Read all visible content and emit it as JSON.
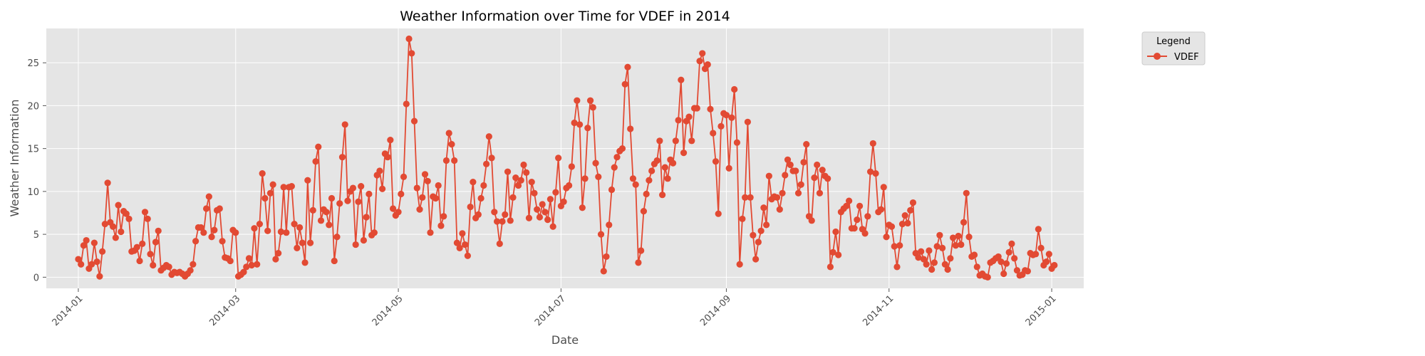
{
  "chart_data": {
    "type": "line",
    "title": "Weather Information over Time for VDEF in 2014",
    "xlabel": "Date",
    "ylabel": "Weather Information",
    "xlim_days": [
      -12,
      377
    ],
    "ylim": [
      -1.3,
      29.0
    ],
    "x_ticks": [
      {
        "label": "2014-01",
        "day": 0
      },
      {
        "label": "2014-03",
        "day": 59
      },
      {
        "label": "2014-05",
        "day": 120
      },
      {
        "label": "2014-07",
        "day": 181
      },
      {
        "label": "2014-09",
        "day": 243
      },
      {
        "label": "2014-11",
        "day": 304
      },
      {
        "label": "2015-01",
        "day": 365
      }
    ],
    "y_ticks": [
      0,
      5,
      10,
      15,
      20,
      25
    ],
    "grid": true,
    "legend": {
      "title": "Legend",
      "position": "outside-top-right",
      "entries": [
        "VDEF"
      ]
    },
    "colors": {
      "series": "#E24A33",
      "plot_bg": "#E5E5E5",
      "grid": "#ffffff"
    },
    "series": [
      {
        "name": "VDEF",
        "start_date": "2014-01-01",
        "step_days": 1,
        "values": [
          2.1,
          1.5,
          3.7,
          4.3,
          1.0,
          1.5,
          4.0,
          1.8,
          0.1,
          3.0,
          6.2,
          11.0,
          6.4,
          5.9,
          4.6,
          8.4,
          5.3,
          7.7,
          7.4,
          6.8,
          3.0,
          3.1,
          3.5,
          1.9,
          3.9,
          7.6,
          6.8,
          2.7,
          1.4,
          4.1,
          5.4,
          0.8,
          1.1,
          1.4,
          1.2,
          0.3,
          0.6,
          0.5,
          0.6,
          0.4,
          0.1,
          0.4,
          0.8,
          1.5,
          4.2,
          5.8,
          5.8,
          5.2,
          8.0,
          9.4,
          4.7,
          5.5,
          7.8,
          8.0,
          4.2,
          2.3,
          2.2,
          1.9,
          5.5,
          5.2,
          0.1,
          0.3,
          0.6,
          1.2,
          2.2,
          1.4,
          5.7,
          1.5,
          6.2,
          12.1,
          9.2,
          5.4,
          9.8,
          10.8,
          2.1,
          2.8,
          5.3,
          10.5,
          5.2,
          10.5,
          10.6,
          6.2,
          3.4,
          5.8,
          4.0,
          1.7,
          11.3,
          4.0,
          7.8,
          13.5,
          15.2,
          6.6,
          7.9,
          7.6,
          6.1,
          9.2,
          1.9,
          4.7,
          8.6,
          14.0,
          17.8,
          8.9,
          10.0,
          10.4,
          3.8,
          8.8,
          10.6,
          4.3,
          7.0,
          9.7,
          4.9,
          5.2,
          11.9,
          12.4,
          10.3,
          14.4,
          14.0,
          16.0,
          8.0,
          7.2,
          7.6,
          9.7,
          11.7,
          20.2,
          27.8,
          26.1,
          18.2,
          10.4,
          7.9,
          9.3,
          12.0,
          11.2,
          5.2,
          9.4,
          9.2,
          10.7,
          6.0,
          7.1,
          13.6,
          16.8,
          15.5,
          13.6,
          4.0,
          3.4,
          5.1,
          3.8,
          2.5,
          8.2,
          11.1,
          6.9,
          7.3,
          9.2,
          10.7,
          13.2,
          16.4,
          13.9,
          7.6,
          6.5,
          3.9,
          6.5,
          7.3,
          12.3,
          6.6,
          9.3,
          11.6,
          10.7,
          11.3,
          13.1,
          12.2,
          6.9,
          11.1,
          9.8,
          7.9,
          7.0,
          8.5,
          7.6,
          6.7,
          9.1,
          5.9,
          9.9,
          13.9,
          8.3,
          8.8,
          10.4,
          10.7,
          12.9,
          18.0,
          20.6,
          17.8,
          8.1,
          11.5,
          17.4,
          20.6,
          19.8,
          13.3,
          11.7,
          5.0,
          0.7,
          2.4,
          6.1,
          10.2,
          12.8,
          14.0,
          14.7,
          15.0,
          22.5,
          24.5,
          17.3,
          11.5,
          10.8,
          1.7,
          3.1,
          7.7,
          9.7,
          11.3,
          12.4,
          13.2,
          13.6,
          15.9,
          9.6,
          12.8,
          11.5,
          13.7,
          13.3,
          15.9,
          18.3,
          23.0,
          14.5,
          18.2,
          18.7,
          15.9,
          19.7,
          19.7,
          25.2,
          26.1,
          24.3,
          24.8,
          19.6,
          16.8,
          13.5,
          7.4,
          17.6,
          19.1,
          18.9,
          12.7,
          18.6,
          21.9,
          15.7,
          1.5,
          6.8,
          9.3,
          18.1,
          9.3,
          4.9,
          2.1,
          4.1,
          5.4,
          8.1,
          6.1,
          11.8,
          9.1,
          9.4,
          9.3,
          7.9,
          9.8,
          11.9,
          13.7,
          13.1,
          12.4,
          12.4,
          9.8,
          10.8,
          13.4,
          15.5,
          7.1,
          6.6,
          11.6,
          13.1,
          9.8,
          12.5,
          11.8,
          11.5,
          1.2,
          2.9,
          5.3,
          2.6,
          7.6,
          8.0,
          8.3,
          8.9,
          5.7,
          5.7,
          6.7,
          8.3,
          5.6,
          5.1,
          7.1,
          12.3,
          15.6,
          12.1,
          7.6,
          7.9,
          10.5,
          4.7,
          6.1,
          5.9,
          3.6,
          1.2,
          3.7,
          6.2,
          7.2,
          6.3,
          7.8,
          8.7,
          2.8,
          2.3,
          3.0,
          2.1,
          1.5,
          3.1,
          0.9,
          1.7,
          3.6,
          4.9,
          3.4,
          1.5,
          0.9,
          2.2,
          4.6,
          3.7,
          4.8,
          3.8,
          6.4,
          9.8,
          4.7,
          2.4,
          2.6,
          1.2,
          0.2,
          0.4,
          0.1,
          0.0,
          1.7,
          1.9,
          2.2,
          2.4,
          1.8,
          0.4,
          1.6,
          2.9,
          3.9,
          2.2,
          0.8,
          0.2,
          0.3,
          0.8,
          0.7,
          2.8,
          2.6,
          2.7,
          5.6,
          3.4,
          1.4,
          1.8,
          2.7,
          1.0,
          1.4
        ]
      }
    ]
  }
}
